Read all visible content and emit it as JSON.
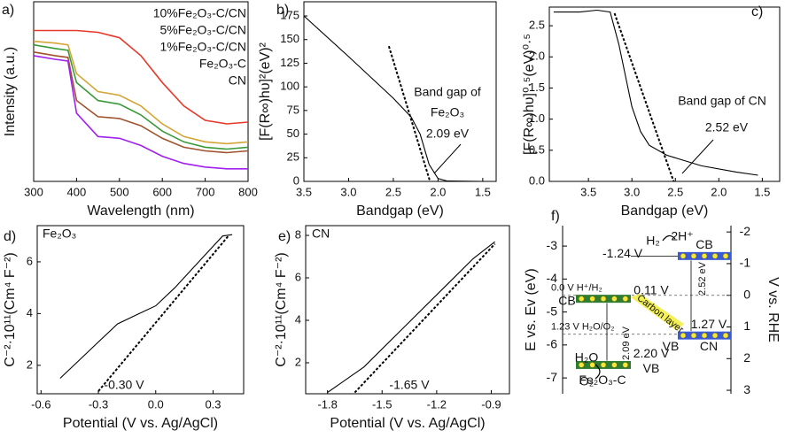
{
  "chart_data": [
    {
      "type": "line",
      "label": "a)",
      "xlabel": "Wavelength (nm)",
      "ylabel": "Intensity (a.u.)",
      "xlim": [
        300,
        800
      ],
      "xticks": [
        300,
        400,
        500,
        600,
        700,
        800
      ],
      "ylim": [
        0,
        1
      ],
      "legend": "upper right",
      "x": [
        300,
        350,
        380,
        400,
        450,
        500,
        550,
        600,
        650,
        700,
        750,
        800
      ],
      "series": [
        {
          "name": "10%Fe₂O₃-C/CN",
          "color": "#d4a537",
          "values": [
            0.78,
            0.77,
            0.76,
            0.6,
            0.5,
            0.48,
            0.42,
            0.32,
            0.25,
            0.22,
            0.21,
            0.22
          ]
        },
        {
          "name": "5%Fe₂O₃-C/CN",
          "color": "#3a9a3a",
          "values": [
            0.76,
            0.74,
            0.73,
            0.55,
            0.45,
            0.43,
            0.37,
            0.28,
            0.22,
            0.19,
            0.18,
            0.19
          ]
        },
        {
          "name": "1%Fe₂O₃-C/CN",
          "color": "#a0522d",
          "values": [
            0.72,
            0.7,
            0.69,
            0.45,
            0.36,
            0.35,
            0.31,
            0.24,
            0.19,
            0.17,
            0.16,
            0.17
          ]
        },
        {
          "name": "Fe₂O₃-C",
          "color": "#e8382a",
          "values": [
            0.84,
            0.84,
            0.84,
            0.84,
            0.83,
            0.8,
            0.7,
            0.55,
            0.42,
            0.34,
            0.32,
            0.33
          ]
        },
        {
          "name": "CN",
          "color": "#a020f0",
          "values": [
            0.7,
            0.68,
            0.67,
            0.38,
            0.25,
            0.24,
            0.2,
            0.14,
            0.1,
            0.08,
            0.07,
            0.07
          ]
        }
      ]
    },
    {
      "type": "line",
      "label": "b)",
      "xlabel": "Bandgap (eV)",
      "ylabel": "[F(R∞)hυ]²(eV)²",
      "xlim": [
        3.5,
        1.35
      ],
      "xticks": [
        3.5,
        {
          "value": 3,
          "label": "3.0"
        },
        2.5,
        {
          "value": 2,
          "label": "2.0"
        },
        1.5
      ],
      "ylim": [
        0,
        190
      ],
      "yticks": [
        0,
        25,
        50,
        75,
        100,
        125,
        150,
        175
      ],
      "annotations": [
        "Band gap of",
        "Fe₂O₃",
        "2.09 eV"
      ],
      "series": [
        {
          "color": "#000000",
          "x": [
            3.5,
            3.0,
            2.5,
            2.3,
            2.2,
            2.1,
            2.0,
            1.9,
            1.5
          ],
          "values": [
            175,
            132,
            88,
            68,
            50,
            18,
            3,
            0.5,
            0
          ]
        },
        {
          "color": "#000000",
          "dashed": true,
          "x": [
            2.55,
            2.09
          ],
          "values": [
            143,
            0
          ]
        }
      ]
    },
    {
      "type": "line",
      "label": "c)",
      "xlabel": "Bandgap (eV)",
      "ylabel": "[F(R∞)hυ]⁰·⁵(eV)⁰·⁵",
      "xlim": [
        3.95,
        1.3
      ],
      "xticks": [
        3.5,
        {
          "value": 3,
          "label": "3.0"
        },
        2.5,
        {
          "value": 2,
          "label": "2.0"
        },
        1.5
      ],
      "ylim": [
        0,
        2.8
      ],
      "yticks": [
        {
          "value": 0,
          "label": "0.0"
        },
        0.5,
        {
          "value": 1,
          "label": "1.0"
        },
        1.5,
        {
          "value": 2,
          "label": "2.0"
        },
        2.5
      ],
      "annotations": [
        "Band gap of CN",
        "2.52 eV"
      ],
      "series": [
        {
          "color": "#000000",
          "x": [
            3.9,
            3.6,
            3.4,
            3.25,
            3.15,
            3.0,
            2.9,
            2.8,
            2.6,
            2.2,
            1.8,
            1.55
          ],
          "values": [
            2.72,
            2.72,
            2.75,
            2.72,
            2.2,
            1.2,
            0.8,
            0.58,
            0.42,
            0.25,
            0.15,
            0.1
          ]
        },
        {
          "color": "#000000",
          "dashed": true,
          "x": [
            3.2,
            2.52
          ],
          "values": [
            2.7,
            0
          ]
        }
      ]
    },
    {
      "type": "line",
      "label": "d)",
      "xlabel": "Potential (V vs. Ag/AgCl)",
      "ylabel": "C⁻²·10¹¹(Cm⁴ F⁻²)",
      "xlim": [
        -0.62,
        0.46
      ],
      "xticks": [
        -0.6,
        -0.3,
        {
          "value": 0,
          "label": "0.0"
        },
        0.3
      ],
      "ylim": [
        0.9,
        7.4
      ],
      "yticks": [
        2,
        4,
        6
      ],
      "annotations": [
        "Fe₂O₃",
        "-0.30 V"
      ],
      "series": [
        {
          "color": "#000000",
          "x": [
            -0.5,
            -0.4,
            -0.3,
            -0.2,
            -0.1,
            0,
            0.1,
            0.2,
            0.3,
            0.35,
            0.4
          ],
          "values": [
            1.5,
            2.2,
            2.9,
            3.6,
            3.95,
            4.3,
            5.0,
            5.8,
            6.6,
            7.0,
            7.05
          ]
        },
        {
          "color": "#000000",
          "dashed": true,
          "x": [
            -0.3,
            0.38
          ],
          "values": [
            1.0,
            7.0
          ]
        }
      ]
    },
    {
      "type": "line",
      "label": "e)",
      "xlabel": "Potential (V vs. Ag/AgCl)",
      "ylabel": "C⁻²·10¹¹(Cm⁴ F⁻²)",
      "xlim": [
        -1.92,
        -0.8
      ],
      "xticks": [
        -1.8,
        -1.5,
        -1.2,
        -0.9
      ],
      "ylim": [
        0.54,
        8.46
      ],
      "yticks": [
        2,
        4,
        6,
        8
      ],
      "annotations": [
        "CN",
        "-1.65 V"
      ],
      "series": [
        {
          "color": "#000000",
          "x": [
            -1.8,
            -1.6,
            -1.4,
            -1.2,
            -1.0,
            -0.88
          ],
          "values": [
            0.6,
            1.8,
            3.5,
            5.2,
            6.9,
            7.7
          ]
        },
        {
          "color": "#000000",
          "dashed": true,
          "x": [
            -1.65,
            -0.88
          ],
          "values": [
            0.6,
            7.6
          ]
        }
      ]
    },
    {
      "type": "energy",
      "label": "f)",
      "ylabel": "E vs. Ev (eV)",
      "y2label": "V vs. RHE",
      "ylim": [
        -7.48,
        -2.38
      ],
      "yticks": [
        -3,
        -4,
        -5,
        -6,
        -7
      ],
      "y2lim": [
        3.11,
        -2.2
      ],
      "y2ticks": [
        -2,
        -1,
        0,
        1,
        2,
        3
      ],
      "levels": [
        {
          "value": 0,
          "label": "0.0 V H⁺/H₂"
        },
        {
          "value": 1.23,
          "label": "1.23 V H₂O/O₂"
        }
      ],
      "bands": [
        {
          "name": "CN",
          "values": [
            -1.24,
            1.27
          ],
          "value_labels": [
            "-1.24 V",
            "1.27 V"
          ],
          "labels": [
            "CB",
            "VB"
          ],
          "gap_label": "2.52 eV",
          "color": "#3b5bd6"
        },
        {
          "name": "Fe₂O₃-C",
          "values": [
            0.11,
            2.2
          ],
          "value_labels": [
            "0.11 V",
            "2.20 V"
          ],
          "labels": [
            "CB",
            "VB"
          ],
          "gap_label": "2.09 eV",
          "color": "#2e7d32"
        }
      ],
      "annotations": [
        "H₂",
        "2H⁺",
        "Carbon layer",
        "H₂O",
        "O₂"
      ]
    }
  ]
}
